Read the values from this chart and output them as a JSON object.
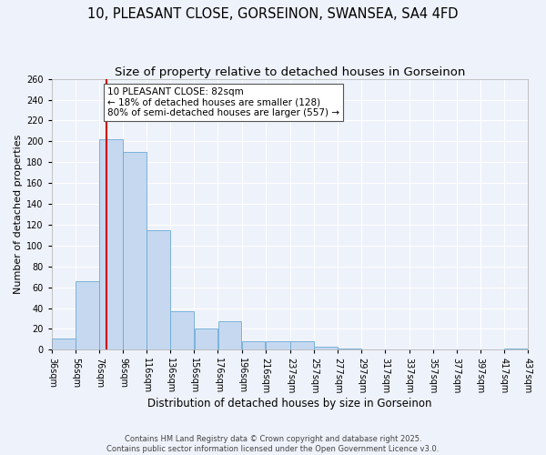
{
  "title": "10, PLEASANT CLOSE, GORSEINON, SWANSEA, SA4 4FD",
  "subtitle": "Size of property relative to detached houses in Gorseinon",
  "xlabel": "Distribution of detached houses by size in Gorseinon",
  "ylabel": "Number of detached properties",
  "bin_edges": [
    36,
    56,
    76,
    96,
    116,
    136,
    156,
    176,
    196,
    216,
    237,
    257,
    277,
    297,
    317,
    337,
    357,
    377,
    397,
    417,
    437
  ],
  "bar_heights": [
    11,
    66,
    202,
    190,
    115,
    37,
    20,
    27,
    8,
    8,
    8,
    3,
    1,
    0,
    0,
    0,
    0,
    0,
    0,
    1
  ],
  "bar_color": "#c5d8f0",
  "bar_edge_color": "#6aaad4",
  "background_color": "#eef2fa",
  "grid_color": "#ffffff",
  "vline_x": 82,
  "vline_color": "#cc0000",
  "annotation_text": "10 PLEASANT CLOSE: 82sqm\n← 18% of detached houses are smaller (128)\n80% of semi-detached houses are larger (557) →",
  "annotation_box_edge": "#555555",
  "ylim": [
    0,
    260
  ],
  "yticks": [
    0,
    20,
    40,
    60,
    80,
    100,
    120,
    140,
    160,
    180,
    200,
    220,
    240,
    260
  ],
  "footer_line1": "Contains HM Land Registry data © Crown copyright and database right 2025.",
  "footer_line2": "Contains public sector information licensed under the Open Government Licence v3.0.",
  "title_fontsize": 10.5,
  "subtitle_fontsize": 9.5,
  "xlabel_fontsize": 8.5,
  "ylabel_fontsize": 8,
  "tick_fontsize": 7,
  "annotation_fontsize": 7.5,
  "footer_fontsize": 6
}
